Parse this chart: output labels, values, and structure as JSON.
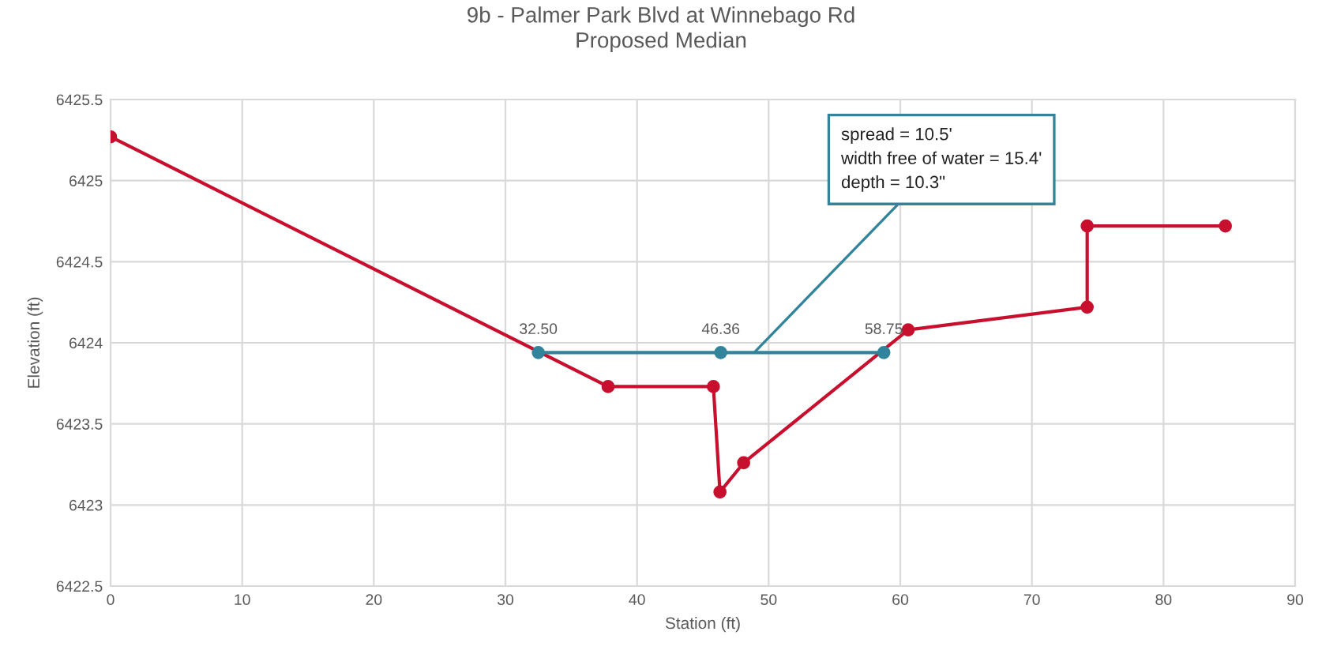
{
  "chart_data": {
    "type": "line",
    "title": "9b - Palmer Park Blvd at Winnebago Rd\nProposed Median",
    "xlabel": "Station (ft)",
    "ylabel": "Elevation (ft)",
    "series": [
      {
        "color": "#c8102e",
        "x": [
          0,
          37.8,
          45.8,
          46.3,
          48.1,
          60.6,
          74.2,
          74.2,
          84.7
        ],
        "values": [
          6425.27,
          6423.73,
          6423.73,
          6423.08,
          6423.26,
          6424.08,
          6424.22,
          6424.72,
          6424.72
        ]
      },
      {
        "color": "#31849b",
        "x": [
          32.5,
          46.36,
          58.75
        ],
        "values": [
          6423.94,
          6423.94,
          6423.94
        ]
      }
    ],
    "annotations": [
      {
        "text": "32.50",
        "x": 32.5,
        "y": 6423.94
      },
      {
        "text": "46.36",
        "x": 46.36,
        "y": 6423.94
      },
      {
        "text": "58.75",
        "x": 58.75,
        "y": 6423.94
      },
      {
        "text": "spread = 10.5'\nwidth free of water = 15.4'\ndepth = 10.3\"",
        "x": 48.9,
        "y": 6423.94
      }
    ],
    "xlim": [
      0,
      90
    ],
    "xticks": [
      0,
      10,
      20,
      30,
      40,
      50,
      60,
      70,
      80,
      90
    ],
    "ylim": [
      6422.5,
      6425.5
    ],
    "yticks": [
      6422.5,
      6423,
      6423.5,
      6424,
      6424.5,
      6425,
      6425.5
    ],
    "grid": true,
    "marker": "circle",
    "line_style": "solid"
  }
}
